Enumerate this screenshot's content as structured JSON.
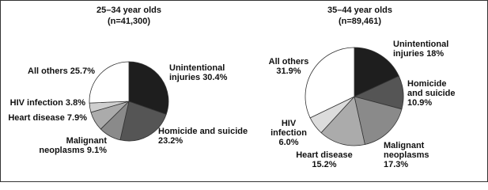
{
  "chart_data": [
    {
      "type": "pie",
      "title": "25–34 year olds",
      "subtitle": "(n=41,300)",
      "categories": [
        "Unintentional injuries",
        "Homicide and suicide",
        "Malignant neoplasms",
        "Heart disease",
        "HIV infection",
        "All others"
      ],
      "values": [
        30.4,
        23.2,
        9.1,
        7.9,
        3.8,
        25.7
      ],
      "value_labels": [
        "30.4%",
        "23.2%",
        "9.1%",
        "7.9%",
        "3.8%",
        "25.7%"
      ],
      "colors": [
        "#1e1e1e",
        "#555555",
        "#8a8a8a",
        "#ababab",
        "#cfcfcf",
        "#ffffff"
      ]
    },
    {
      "type": "pie",
      "title": "35–44 year olds",
      "subtitle": "(n=89,461)",
      "categories": [
        "Unintentional injuries",
        "Homicide and suicide",
        "Malignant neoplasms",
        "Heart disease",
        "HIV infection",
        "All others"
      ],
      "values": [
        18,
        10.9,
        17.3,
        15.2,
        6.0,
        31.9
      ],
      "value_labels": [
        "18%",
        "10.9%",
        "17.3%",
        "15.2%",
        "6.0%",
        "31.9%"
      ],
      "colors": [
        "#1e1e1e",
        "#555555",
        "#8a8a8a",
        "#ababab",
        "#dcdcdc",
        "#ffffff"
      ]
    }
  ]
}
